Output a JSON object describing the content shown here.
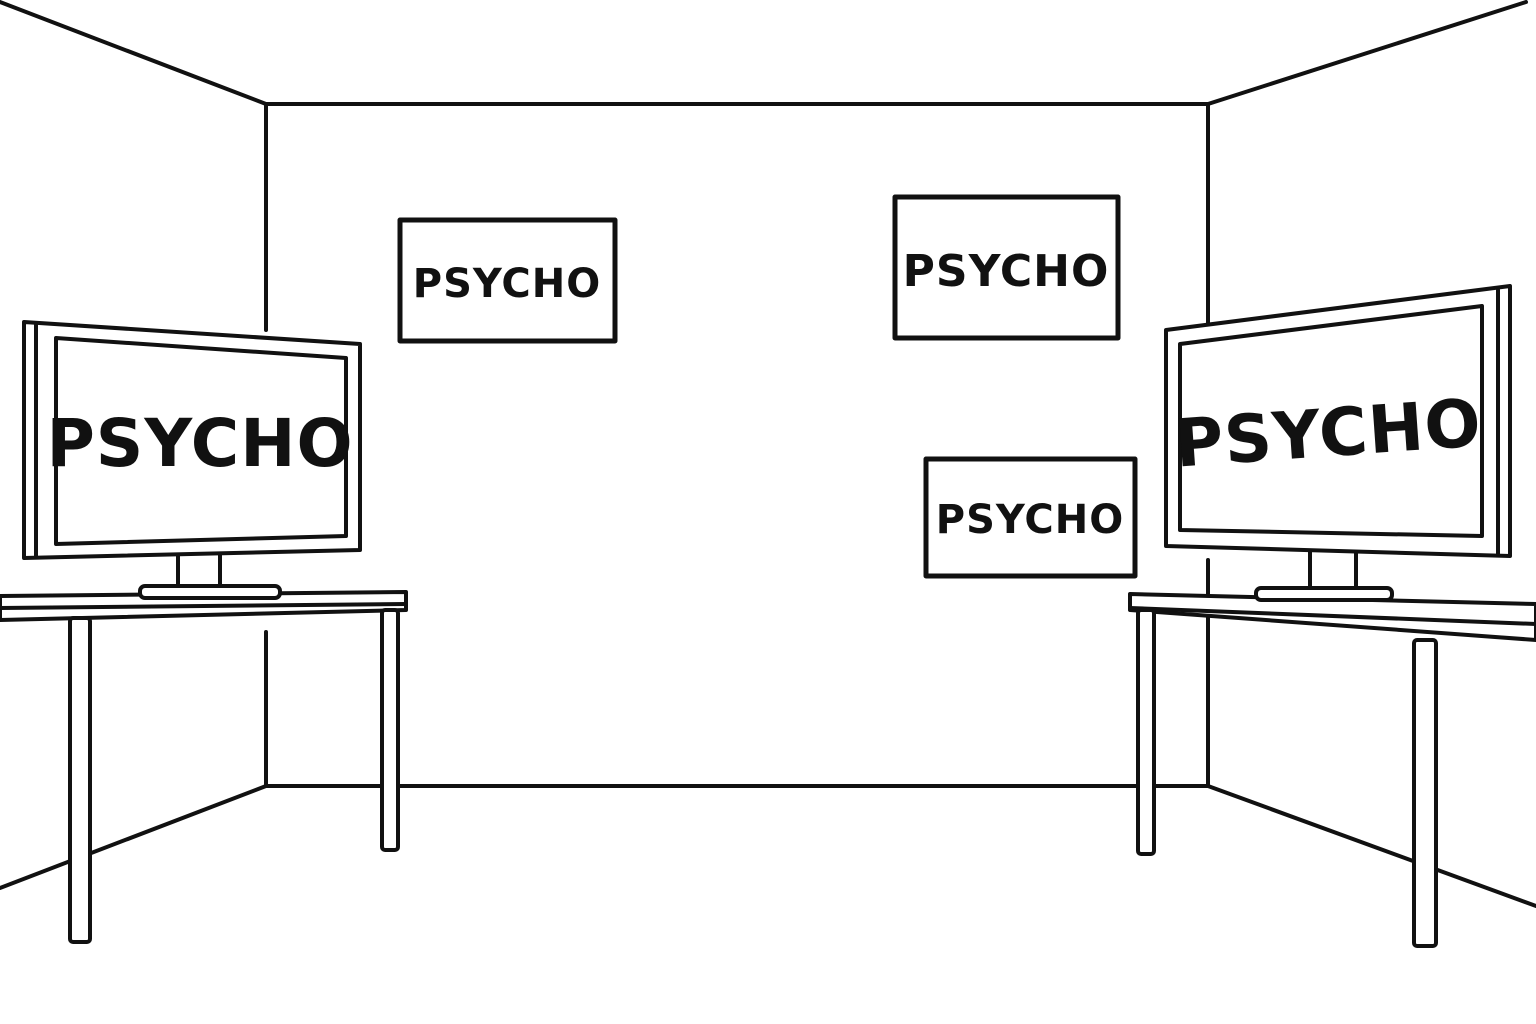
{
  "scene": {
    "left_monitor": {
      "text": "PSYCHO"
    },
    "right_monitor": {
      "text": "PSYCHO"
    },
    "wall_signs": [
      {
        "text": "PSYCHO"
      },
      {
        "text": "PSYCHO"
      },
      {
        "text": "PSYCHO"
      }
    ]
  }
}
